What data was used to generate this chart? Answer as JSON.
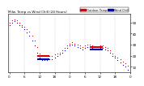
{
  "title": "Milw. Temp vs Wind Chill (24 Hours)",
  "bg_color": "#ffffff",
  "plot_bg": "#ffffff",
  "red_color": "#dd0000",
  "blue_color": "#0000bb",
  "black_color": "#000000",
  "grid_color": "#aaaaaa",
  "temp_x": [
    0,
    1,
    2,
    3,
    4,
    5,
    6,
    7,
    8,
    9,
    10,
    11,
    12,
    13,
    14,
    15,
    16,
    17,
    18,
    19,
    20,
    21,
    22,
    23,
    24,
    25,
    26,
    27,
    28,
    29,
    30,
    31,
    32,
    33,
    34,
    35,
    36,
    37,
    38,
    39,
    40,
    41,
    42,
    43,
    44,
    45,
    46,
    47
  ],
  "temp_y": [
    50,
    52,
    53,
    52,
    50,
    48,
    46,
    44,
    42,
    38,
    34,
    28,
    22,
    20,
    20,
    20,
    20,
    20,
    21,
    22,
    23,
    25,
    27,
    29,
    31,
    32,
    31,
    30,
    29,
    28,
    29,
    30,
    30,
    29,
    28,
    28,
    29,
    29,
    28,
    27,
    25,
    22,
    20,
    18,
    17,
    15,
    13,
    11
  ],
  "wind_x": [
    0,
    1,
    2,
    3,
    4,
    5,
    6,
    7,
    8,
    9,
    10,
    11,
    12,
    13,
    14,
    15,
    16,
    17,
    18,
    19,
    20,
    21,
    22,
    23,
    24,
    25,
    26,
    27,
    28,
    29,
    30,
    31,
    32,
    33,
    34,
    35,
    36,
    37,
    38,
    39,
    40,
    41,
    42,
    43,
    44,
    45,
    46,
    47
  ],
  "wind_y": [
    48,
    50,
    51,
    50,
    48,
    46,
    44,
    41,
    38,
    34,
    29,
    23,
    18,
    16,
    16,
    16,
    17,
    17,
    18,
    20,
    21,
    23,
    25,
    27,
    29,
    30,
    29,
    28,
    27,
    26,
    27,
    28,
    28,
    27,
    26,
    26,
    27,
    27,
    26,
    25,
    23,
    20,
    18,
    16,
    14,
    12,
    10,
    7
  ],
  "hlines_red": [
    {
      "x": [
        11,
        16
      ],
      "y": 20
    },
    {
      "x": [
        32,
        37
      ],
      "y": 28
    }
  ],
  "hlines_blue": [
    {
      "x": [
        11,
        16
      ],
      "y": 17
    },
    {
      "x": [
        32,
        37
      ],
      "y": 26
    }
  ],
  "xticks": [
    0,
    6,
    12,
    18,
    24,
    30,
    36,
    42,
    48
  ],
  "xticklabels": [
    "0",
    "6",
    "12",
    "18",
    "0",
    "6",
    "12",
    "18",
    "0"
  ],
  "yticks": [
    10,
    20,
    30,
    40,
    50
  ],
  "yticklabels": [
    "10",
    "20",
    "30",
    "40",
    "50"
  ],
  "xlim": [
    -0.5,
    47.5
  ],
  "ylim": [
    5,
    58
  ],
  "grid_x": [
    0,
    6,
    12,
    18,
    24,
    30,
    36,
    42,
    48
  ],
  "legend_temp": "Outdoor Temp",
  "legend_wind": "Wind Chill"
}
